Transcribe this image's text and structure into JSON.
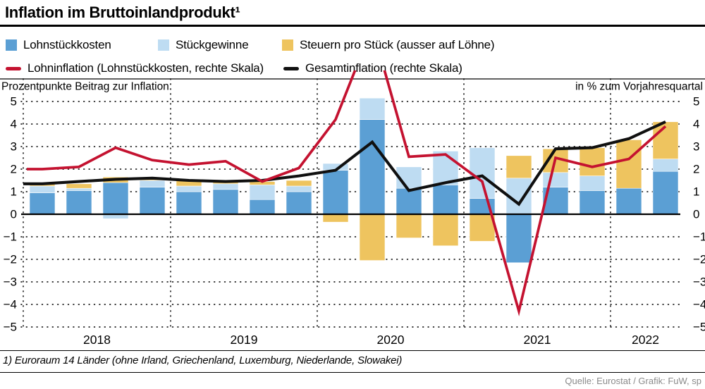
{
  "header": {
    "title": "Inflation im Bruttoinlandprodukt¹"
  },
  "legend": {
    "items": [
      {
        "label": "Lohnstückkosten",
        "marker": "square",
        "color": "#5B9FD4"
      },
      {
        "label": "Stückgewinne",
        "marker": "square",
        "color": "#BEDCF2"
      },
      {
        "label": "Steuern pro Stück (ausser auf Löhne)",
        "marker": "square",
        "color": "#EEC45F"
      },
      {
        "label": "Lohninflation (Lohnstückkosten, rechte Skala)",
        "marker": "line",
        "color": "#C41230"
      },
      {
        "label": "Gesamtinflation (rechte Skala)",
        "marker": "line",
        "color": "#111111"
      }
    ]
  },
  "chart_data": {
    "type": "bar",
    "subtype": "stacked-bars-with-overlaid-lines",
    "left_axis_title": "Prozentpunkte Beitrag zur Inflation",
    "right_axis_title": "in % zum Vorjahresquartal",
    "ylim": [
      -5,
      5
    ],
    "yticks": [
      5,
      4,
      3,
      2,
      1,
      0,
      -1,
      -2,
      -3,
      -4,
      -5
    ],
    "ytick_labels": [
      "5",
      "4",
      "3",
      "2",
      "1",
      "0",
      "−1",
      "−2",
      "−3",
      "−4",
      "−5"
    ],
    "grid": "dotted horizontal lines each integer, solid zero line, dotted vertical year dividers",
    "legend_position": "top",
    "categories": [
      "Q1 2018",
      "Q2 2018",
      "Q3 2018",
      "Q4 2018",
      "Q1 2019",
      "Q2 2019",
      "Q3 2019",
      "Q4 2019",
      "Q1 2020",
      "Q2 2020",
      "Q3 2020",
      "Q4 2020",
      "Q1 2021",
      "Q2 2021",
      "Q3 2021",
      "Q4 2021",
      "Q1 2022",
      "Q2 2022"
    ],
    "year_labels": [
      "2018",
      "2019",
      "2020",
      "2021",
      "2022"
    ],
    "series": [
      {
        "name": "Lohnstückkosten",
        "type": "bar",
        "color": "#5B9FD4",
        "values": [
          0.95,
          1.05,
          1.4,
          1.2,
          1.0,
          1.1,
          0.65,
          1.0,
          1.95,
          4.2,
          1.15,
          1.3,
          0.7,
          -2.15,
          1.2,
          1.05,
          1.15,
          1.9
        ]
      },
      {
        "name": "Stückgewinne",
        "type": "bar",
        "color": "#BEDCF2",
        "values": [
          0.3,
          0.1,
          -0.2,
          0.3,
          0.25,
          0.25,
          0.65,
          0.25,
          0.3,
          0.95,
          0.95,
          1.5,
          2.25,
          1.6,
          0.65,
          0.65,
          0.0,
          0.55
        ]
      },
      {
        "name": "Steuern pro Stück (ausser auf Löhne)",
        "type": "bar",
        "color": "#EEC45F",
        "values": [
          0.1,
          0.2,
          0.25,
          0.1,
          0.25,
          0.1,
          0.15,
          0.25,
          -0.35,
          -2.05,
          -1.05,
          -1.4,
          -1.2,
          1.0,
          1.05,
          1.25,
          2.15,
          1.65
        ]
      },
      {
        "name": "Lohninflation (Lohnstückkosten, rechte Skala)",
        "type": "line",
        "color": "#C41230",
        "values": [
          2.0,
          2.1,
          2.95,
          2.4,
          2.2,
          2.35,
          1.45,
          2.05,
          4.2,
          8.3,
          2.55,
          2.65,
          1.45,
          -4.3,
          2.5,
          2.1,
          2.45,
          3.9
        ],
        "clipped_above_plot_top": true
      },
      {
        "name": "Gesamtinflation (rechte Skala)",
        "type": "line",
        "color": "#101010",
        "values": [
          1.35,
          1.45,
          1.55,
          1.6,
          1.5,
          1.45,
          1.5,
          1.7,
          1.95,
          3.2,
          1.05,
          1.4,
          1.7,
          0.45,
          2.9,
          2.95,
          3.35,
          4.1
        ]
      }
    ]
  },
  "footnote": {
    "text": "1) Euroraum 14 Länder (ohne Irland, Griechenland, Luxemburg, Niederlande, Slowakei)"
  },
  "source": {
    "text": "Quelle: Eurostat / Grafik: FuW, sp"
  }
}
